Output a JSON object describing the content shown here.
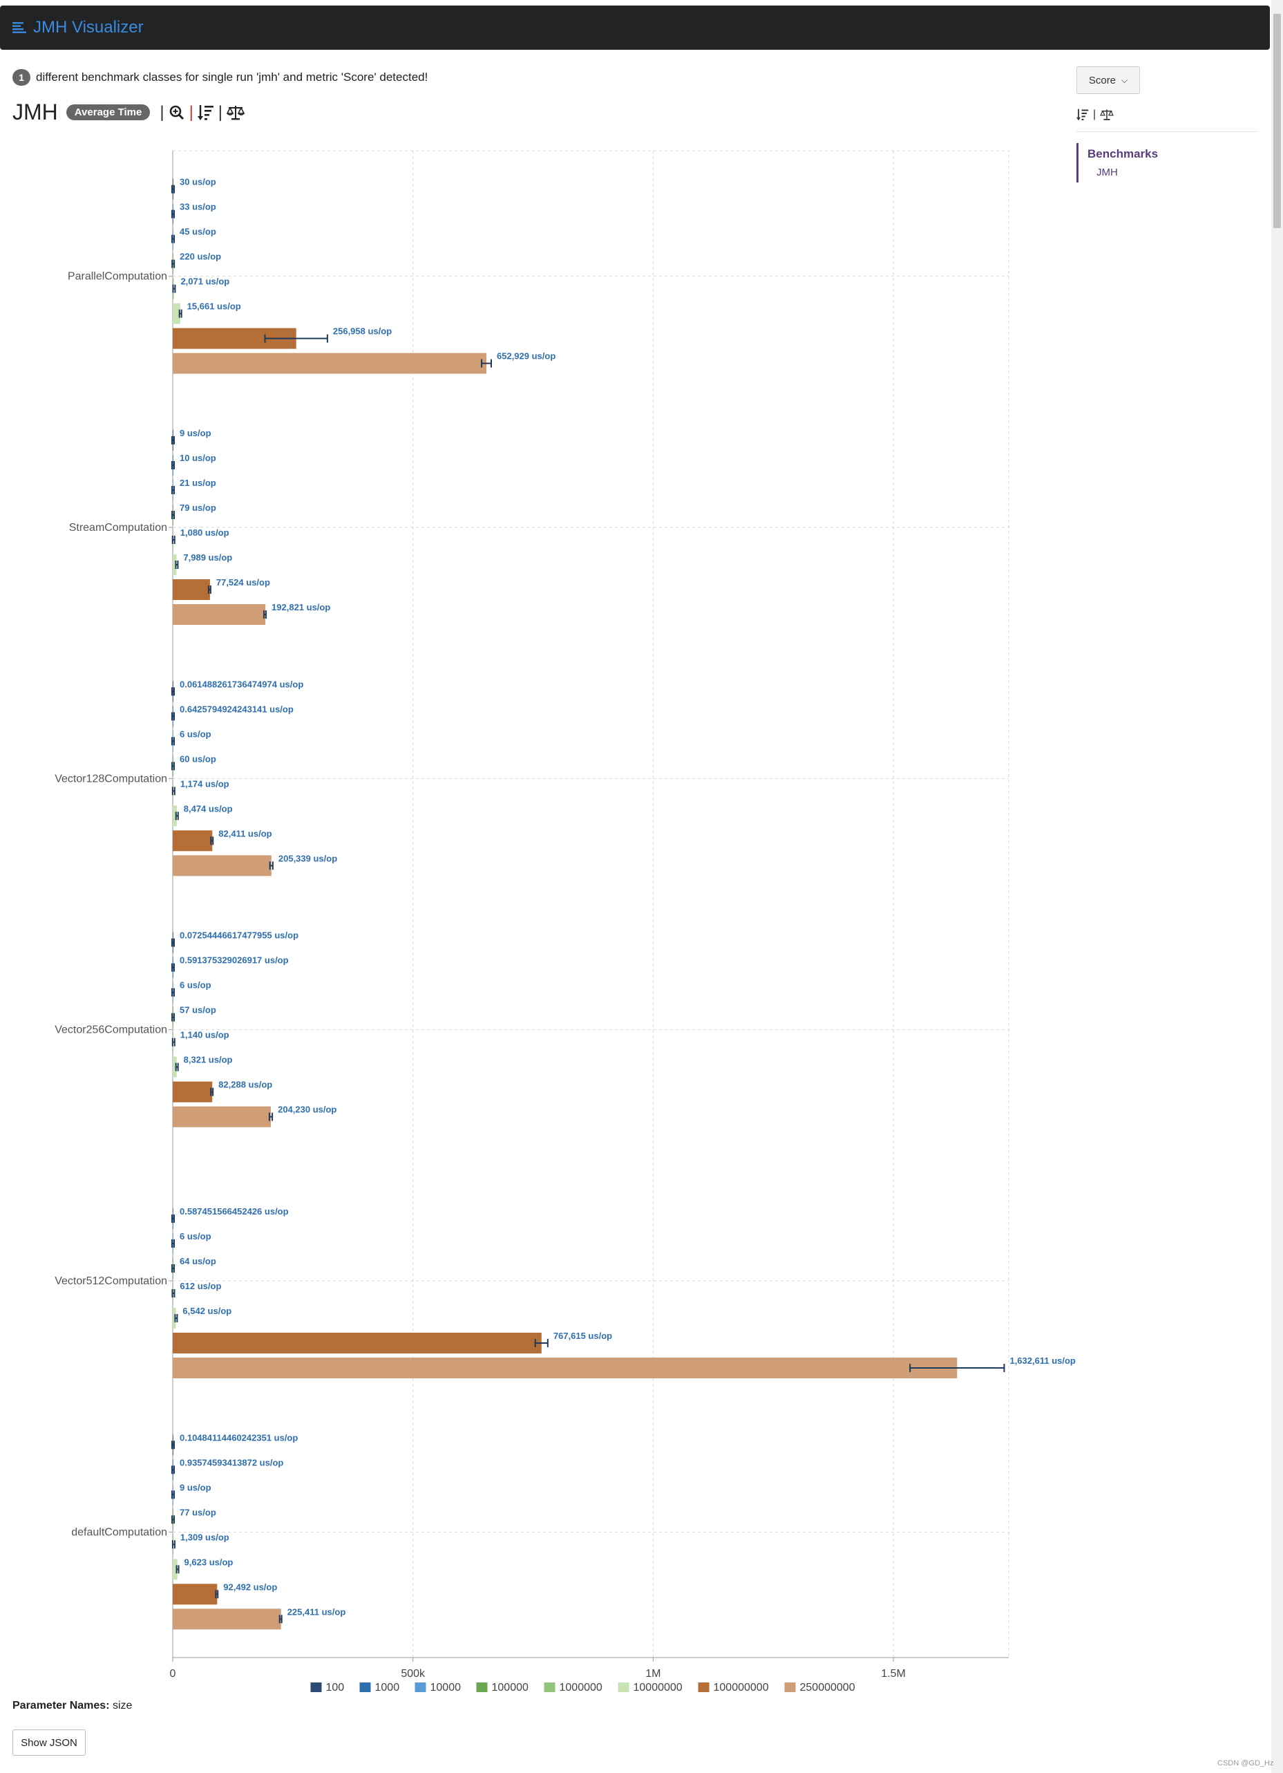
{
  "app": {
    "title": "JMH Visualizer"
  },
  "notice": {
    "count": "1",
    "text": "different benchmark classes for single run 'jmh' and metric 'Score' detected!"
  },
  "header": {
    "title": "JMH",
    "mode_badge": "Average Time",
    "separator": "|"
  },
  "sidebar": {
    "metric_select": "Score",
    "separator": "|",
    "nav_header": "Benchmarks",
    "nav_item": "JMH"
  },
  "parameters": {
    "label": "Parameter Names:",
    "value": "size"
  },
  "show_json_label": "Show JSON",
  "footer_note": "CSDN @GD_Hz",
  "chart_data": {
    "type": "bar",
    "orientation": "horizontal",
    "categories": [
      "ParallelComputation",
      "StreamComputation",
      "Vector128Computation",
      "Vector256Computation",
      "Vector512Computation",
      "defaultComputation"
    ],
    "xlim": [
      0,
      1740000
    ],
    "xticks": [
      0,
      500000,
      1000000,
      1500000
    ],
    "xtick_labels": [
      "0",
      "500k",
      "1M",
      "1.5M"
    ],
    "grid": true,
    "legend_position": "bottom",
    "unit": "us/op",
    "series": [
      {
        "name": "100",
        "color": "#2b4a74",
        "values": [
          30,
          9,
          0.061488261736474974,
          0.07254446617477955,
          null,
          0.10484114460242351
        ],
        "errors": [
          0,
          0,
          0,
          0,
          null,
          0
        ],
        "labels": [
          "30 us/op",
          "9 us/op",
          "0.061488261736474974 us/op",
          "0.07254446617477955 us/op",
          "",
          "0.10484114460242351 us/op"
        ]
      },
      {
        "name": "1000",
        "color": "#2f6fb0",
        "values": [
          33,
          10,
          0.6425794924243141,
          0.591375329026917,
          0.587451566452426,
          0.93574593413872
        ],
        "errors": [
          0,
          0,
          0,
          0,
          0,
          0
        ],
        "labels": [
          "33 us/op",
          "10 us/op",
          "0.6425794924243141 us/op",
          "0.591375329026917 us/op",
          "0.587451566452426 us/op",
          "0.93574593413872 us/op"
        ]
      },
      {
        "name": "10000",
        "color": "#5b9bd5",
        "values": [
          45,
          21,
          6,
          6,
          6,
          9
        ],
        "errors": [
          0,
          0,
          0,
          0,
          0,
          0
        ],
        "labels": [
          "45 us/op",
          "21 us/op",
          "6 us/op",
          "6 us/op",
          "6 us/op",
          "9 us/op"
        ]
      },
      {
        "name": "100000",
        "color": "#6aa84f",
        "values": [
          220,
          79,
          60,
          57,
          64,
          77
        ],
        "errors": [
          0,
          0,
          0,
          0,
          0,
          0
        ],
        "labels": [
          "220 us/op",
          "79 us/op",
          "60 us/op",
          "57 us/op",
          "64 us/op",
          "77 us/op"
        ]
      },
      {
        "name": "1000000",
        "color": "#93c47d",
        "values": [
          2071,
          1080,
          1174,
          1140,
          612,
          1309
        ],
        "errors": [
          0,
          0,
          0,
          0,
          0,
          0
        ],
        "labels": [
          "2,071 us/op",
          "1,080 us/op",
          "1,174 us/op",
          "1,140 us/op",
          "612 us/op",
          "1,309 us/op"
        ]
      },
      {
        "name": "10000000",
        "color": "#c9e4b4",
        "values": [
          15661,
          7989,
          8474,
          8321,
          6542,
          9623
        ],
        "errors": [
          300,
          200,
          200,
          200,
          200,
          200
        ],
        "labels": [
          "15,661 us/op",
          "7,989 us/op",
          "8,474 us/op",
          "8,321 us/op",
          "6,542 us/op",
          "9,623 us/op"
        ]
      },
      {
        "name": "100000000",
        "color": "#b56e35",
        "values": [
          256958,
          77524,
          82411,
          82288,
          767615,
          92492
        ],
        "errors": [
          65000,
          1500,
          1500,
          1500,
          13000,
          1500
        ],
        "labels": [
          "256,958 us/op",
          "77,524 us/op",
          "82,411 us/op",
          "82,288 us/op",
          "767,615 us/op",
          "92,492 us/op"
        ]
      },
      {
        "name": "250000000",
        "color": "#cf9d76",
        "values": [
          652929,
          192821,
          205339,
          204230,
          1632611,
          225411
        ],
        "errors": [
          10000,
          1500,
          3000,
          3000,
          98000,
          1500
        ],
        "labels": [
          "652,929 us/op",
          "192,821 us/op",
          "205,339 us/op",
          "204,230 us/op",
          "1,632,611 us/op",
          "225,411 us/op"
        ]
      }
    ]
  }
}
